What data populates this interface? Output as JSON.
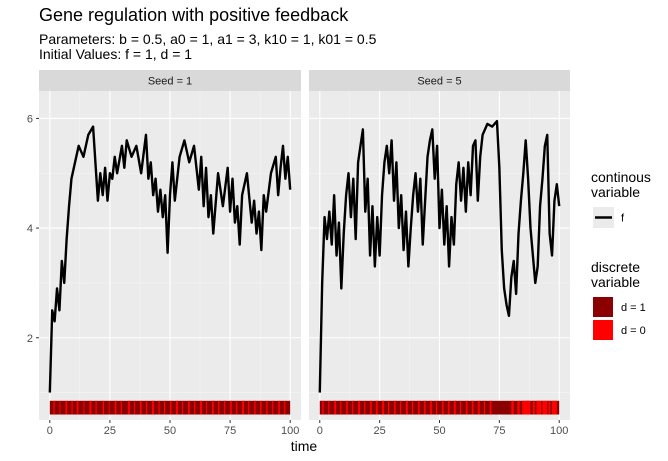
{
  "chart_data": {
    "type": "line",
    "title": "Gene regulation with positive feedback",
    "subtitle_line1": "Parameters: b = 0.5, a0 = 1, a1 = 3, k10 = 1, k01 = 0.5",
    "subtitle_line2": "Initial Values: f = 1, d = 1",
    "xlabel": "time",
    "ylabel": "",
    "xlim": [
      0,
      100
    ],
    "ylim": [
      0.5,
      6.5
    ],
    "x_ticks": [
      0,
      25,
      50,
      75,
      100
    ],
    "y_ticks": [
      2,
      4,
      6
    ],
    "legend": {
      "continuous_title_line1": "continous",
      "continuous_title_line2": "variable",
      "continuous_entries": [
        {
          "label": "f",
          "color": "#000000"
        }
      ],
      "discrete_title_line1": "discrete",
      "discrete_title_line2": "variable",
      "discrete_entries": [
        {
          "label": "d = 1",
          "color": "#8b0000"
        },
        {
          "label": "d = 0",
          "color": "#ff0000"
        }
      ]
    },
    "panels": [
      {
        "strip": "Seed = 1",
        "x": [
          0,
          1,
          2,
          3,
          4,
          5,
          6,
          7,
          8,
          9,
          10,
          12,
          14,
          16,
          18,
          20,
          21,
          22,
          23,
          24,
          25,
          26,
          27,
          28,
          30,
          31,
          32,
          34,
          36,
          38,
          40,
          41,
          42,
          43,
          44,
          45,
          46,
          47,
          48,
          49,
          50,
          51,
          52,
          54,
          56,
          58,
          60,
          62,
          63,
          64,
          65,
          66,
          67,
          68,
          70,
          72,
          74,
          75,
          76,
          77,
          78,
          79,
          80,
          82,
          84,
          85,
          86,
          87,
          88,
          89,
          90,
          92,
          94,
          95,
          96,
          97,
          98,
          99,
          100
        ],
        "f": [
          1.0,
          2.5,
          2.3,
          2.9,
          2.5,
          3.4,
          3.0,
          3.8,
          4.4,
          4.9,
          5.1,
          5.5,
          5.3,
          5.7,
          5.85,
          4.5,
          5.0,
          4.6,
          5.1,
          4.5,
          5.0,
          4.9,
          5.3,
          5.0,
          5.5,
          5.1,
          5.6,
          5.3,
          5.5,
          5.0,
          5.7,
          4.9,
          5.2,
          4.6,
          4.9,
          4.3,
          4.7,
          4.2,
          4.6,
          3.55,
          4.6,
          5.2,
          4.5,
          5.3,
          5.6,
          5.2,
          5.5,
          4.7,
          5.3,
          4.4,
          5.1,
          4.2,
          4.6,
          3.9,
          5.0,
          4.4,
          5.1,
          4.3,
          4.9,
          4.1,
          4.4,
          3.7,
          4.6,
          5.0,
          4.1,
          4.5,
          3.9,
          4.3,
          3.6,
          4.6,
          4.3,
          5.0,
          5.3,
          4.6,
          5.1,
          5.5,
          4.9,
          5.3,
          4.7
        ],
        "d_intervals": [
          {
            "start": 0,
            "end": 100,
            "value": 1
          },
          {
            "start": 1.5,
            "end": 2.0,
            "value": 0
          },
          {
            "start": 4.0,
            "end": 4.4,
            "value": 0
          },
          {
            "start": 6.5,
            "end": 7.2,
            "value": 0
          },
          {
            "start": 9.0,
            "end": 9.5,
            "value": 0
          },
          {
            "start": 11.2,
            "end": 11.9,
            "value": 0
          },
          {
            "start": 14.0,
            "end": 14.4,
            "value": 0
          },
          {
            "start": 16.5,
            "end": 17.3,
            "value": 0
          },
          {
            "start": 19.0,
            "end": 19.5,
            "value": 0
          },
          {
            "start": 22.0,
            "end": 22.6,
            "value": 0
          },
          {
            "start": 24.5,
            "end": 24.9,
            "value": 0
          },
          {
            "start": 27.0,
            "end": 27.7,
            "value": 0
          },
          {
            "start": 29.5,
            "end": 30.0,
            "value": 0
          },
          {
            "start": 32.5,
            "end": 33.3,
            "value": 0
          },
          {
            "start": 35.0,
            "end": 35.4,
            "value": 0
          },
          {
            "start": 37.5,
            "end": 38.2,
            "value": 0
          },
          {
            "start": 40.0,
            "end": 40.5,
            "value": 0
          },
          {
            "start": 42.5,
            "end": 43.3,
            "value": 0
          },
          {
            "start": 45.2,
            "end": 45.7,
            "value": 0
          },
          {
            "start": 47.5,
            "end": 48.0,
            "value": 0
          },
          {
            "start": 50.0,
            "end": 50.6,
            "value": 0
          },
          {
            "start": 52.5,
            "end": 53.3,
            "value": 0
          },
          {
            "start": 55.0,
            "end": 55.4,
            "value": 0
          },
          {
            "start": 57.5,
            "end": 58.2,
            "value": 0
          },
          {
            "start": 60.0,
            "end": 60.5,
            "value": 0
          },
          {
            "start": 62.5,
            "end": 63.3,
            "value": 0
          },
          {
            "start": 65.0,
            "end": 65.4,
            "value": 0
          },
          {
            "start": 67.5,
            "end": 68.2,
            "value": 0
          },
          {
            "start": 70.0,
            "end": 70.6,
            "value": 0
          },
          {
            "start": 72.5,
            "end": 73.0,
            "value": 0
          },
          {
            "start": 75.0,
            "end": 75.7,
            "value": 0
          },
          {
            "start": 77.5,
            "end": 78.0,
            "value": 0
          },
          {
            "start": 80.0,
            "end": 80.8,
            "value": 0
          },
          {
            "start": 82.5,
            "end": 83.0,
            "value": 0
          },
          {
            "start": 85.0,
            "end": 85.6,
            "value": 0
          },
          {
            "start": 87.5,
            "end": 88.1,
            "value": 0
          },
          {
            "start": 90.0,
            "end": 90.6,
            "value": 0
          },
          {
            "start": 92.5,
            "end": 93.0,
            "value": 0
          },
          {
            "start": 95.0,
            "end": 95.7,
            "value": 0
          },
          {
            "start": 97.5,
            "end": 98.0,
            "value": 0
          }
        ]
      },
      {
        "strip": "Seed = 5",
        "x": [
          0,
          1,
          2,
          3,
          4,
          5,
          6,
          7,
          8,
          9,
          10,
          11,
          12,
          13,
          14,
          15,
          16,
          17,
          18,
          19,
          20,
          21,
          22,
          23,
          24,
          25,
          26,
          27,
          28,
          29,
          30,
          31,
          32,
          33,
          34,
          35,
          36,
          37,
          38,
          39,
          40,
          41,
          42,
          43,
          44,
          45,
          46,
          47,
          48,
          49,
          50,
          51,
          52,
          53,
          54,
          55,
          56,
          57,
          58,
          59,
          60,
          61,
          62,
          63,
          64,
          65,
          66,
          67,
          68,
          69,
          70,
          72,
          74,
          75,
          76,
          77,
          78,
          79,
          80,
          81,
          82,
          83,
          84,
          85,
          86,
          87,
          88,
          89,
          90,
          91,
          92,
          93,
          94,
          95,
          96,
          97,
          98,
          99,
          100
        ],
        "f": [
          1.0,
          3.0,
          4.2,
          3.8,
          4.3,
          3.7,
          4.6,
          3.5,
          4.1,
          2.9,
          3.9,
          4.6,
          5.0,
          4.2,
          4.9,
          3.8,
          5.2,
          5.5,
          5.8,
          4.3,
          4.9,
          3.5,
          4.4,
          3.3,
          4.2,
          3.5,
          4.6,
          5.2,
          5.5,
          5.0,
          5.6,
          4.5,
          5.2,
          4.0,
          4.6,
          3.6,
          4.3,
          3.3,
          4.0,
          4.6,
          5.0,
          4.3,
          4.9,
          3.7,
          4.5,
          5.3,
          5.6,
          5.8,
          4.9,
          5.5,
          4.0,
          4.7,
          3.7,
          4.4,
          3.3,
          4.2,
          3.7,
          4.8,
          5.2,
          4.5,
          5.1,
          4.3,
          5.2,
          4.6,
          5.5,
          5.6,
          4.5,
          5.3,
          5.7,
          5.8,
          5.9,
          5.85,
          5.95,
          5.1,
          3.6,
          2.9,
          2.6,
          2.4,
          3.1,
          3.4,
          2.8,
          3.9,
          4.5,
          5.0,
          5.6,
          4.9,
          4.0,
          3.5,
          3.0,
          3.3,
          4.4,
          4.9,
          5.5,
          5.7,
          3.9,
          3.5,
          4.5,
          4.8,
          4.4
        ],
        "d_intervals": [
          {
            "start": 0,
            "end": 100,
            "value": 1
          },
          {
            "start": 1.0,
            "end": 1.6,
            "value": 0
          },
          {
            "start": 3.5,
            "end": 4.0,
            "value": 0
          },
          {
            "start": 6.0,
            "end": 6.8,
            "value": 0
          },
          {
            "start": 8.5,
            "end": 9.0,
            "value": 0
          },
          {
            "start": 11.0,
            "end": 11.7,
            "value": 0
          },
          {
            "start": 13.5,
            "end": 14.0,
            "value": 0
          },
          {
            "start": 16.0,
            "end": 16.8,
            "value": 0
          },
          {
            "start": 18.5,
            "end": 19.0,
            "value": 0
          },
          {
            "start": 21.0,
            "end": 21.7,
            "value": 0
          },
          {
            "start": 23.5,
            "end": 24.2,
            "value": 0
          },
          {
            "start": 26.0,
            "end": 26.8,
            "value": 0
          },
          {
            "start": 28.5,
            "end": 29.0,
            "value": 0
          },
          {
            "start": 31.0,
            "end": 31.7,
            "value": 0
          },
          {
            "start": 33.5,
            "end": 34.0,
            "value": 0
          },
          {
            "start": 36.0,
            "end": 36.8,
            "value": 0
          },
          {
            "start": 38.5,
            "end": 39.0,
            "value": 0
          },
          {
            "start": 41.0,
            "end": 41.7,
            "value": 0
          },
          {
            "start": 43.5,
            "end": 44.2,
            "value": 0
          },
          {
            "start": 46.0,
            "end": 46.8,
            "value": 0
          },
          {
            "start": 48.5,
            "end": 49.0,
            "value": 0
          },
          {
            "start": 51.0,
            "end": 51.7,
            "value": 0
          },
          {
            "start": 53.5,
            "end": 54.2,
            "value": 0
          },
          {
            "start": 56.0,
            "end": 56.8,
            "value": 0
          },
          {
            "start": 58.5,
            "end": 59.0,
            "value": 0
          },
          {
            "start": 61.0,
            "end": 61.7,
            "value": 0
          },
          {
            "start": 63.5,
            "end": 64.2,
            "value": 0
          },
          {
            "start": 66.0,
            "end": 66.8,
            "value": 0
          },
          {
            "start": 68.5,
            "end": 69.0,
            "value": 0
          },
          {
            "start": 71.0,
            "end": 71.7,
            "value": 0
          },
          {
            "start": 80.0,
            "end": 81.0,
            "value": 0
          },
          {
            "start": 82.5,
            "end": 83.5,
            "value": 0
          },
          {
            "start": 84.5,
            "end": 88.0,
            "value": 0
          },
          {
            "start": 89.0,
            "end": 89.8,
            "value": 0
          },
          {
            "start": 90.5,
            "end": 92.5,
            "value": 0
          },
          {
            "start": 93.0,
            "end": 95.0,
            "value": 0
          },
          {
            "start": 95.5,
            "end": 96.3,
            "value": 0
          },
          {
            "start": 97.0,
            "end": 99.0,
            "value": 0
          }
        ]
      }
    ]
  }
}
